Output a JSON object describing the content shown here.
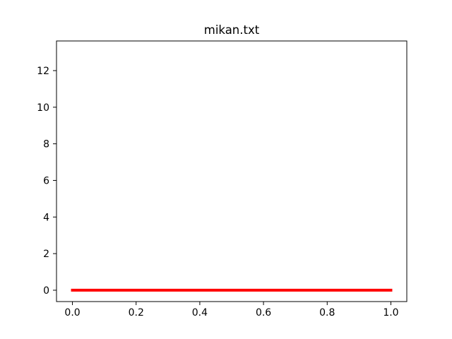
{
  "chart_data": {
    "type": "line",
    "title": "mikan.txt",
    "xlabel": "",
    "ylabel": "",
    "xlim": [
      -0.05,
      1.05
    ],
    "ylim": [
      -0.62,
      13.62
    ],
    "x_ticks": [
      0.0,
      0.2,
      0.4,
      0.6,
      0.8,
      1.0
    ],
    "x_tick_labels": [
      "0.0",
      "0.2",
      "0.4",
      "0.6",
      "0.8",
      "1.0"
    ],
    "y_ticks": [
      0,
      2,
      4,
      6,
      8,
      10,
      12
    ],
    "y_tick_labels": [
      "0",
      "2",
      "4",
      "6",
      "8",
      "10",
      "12"
    ],
    "grid": false,
    "series": [
      {
        "color": "#ff0000",
        "x": [
          0.0,
          1.0
        ],
        "y": [
          0,
          0
        ]
      }
    ]
  }
}
